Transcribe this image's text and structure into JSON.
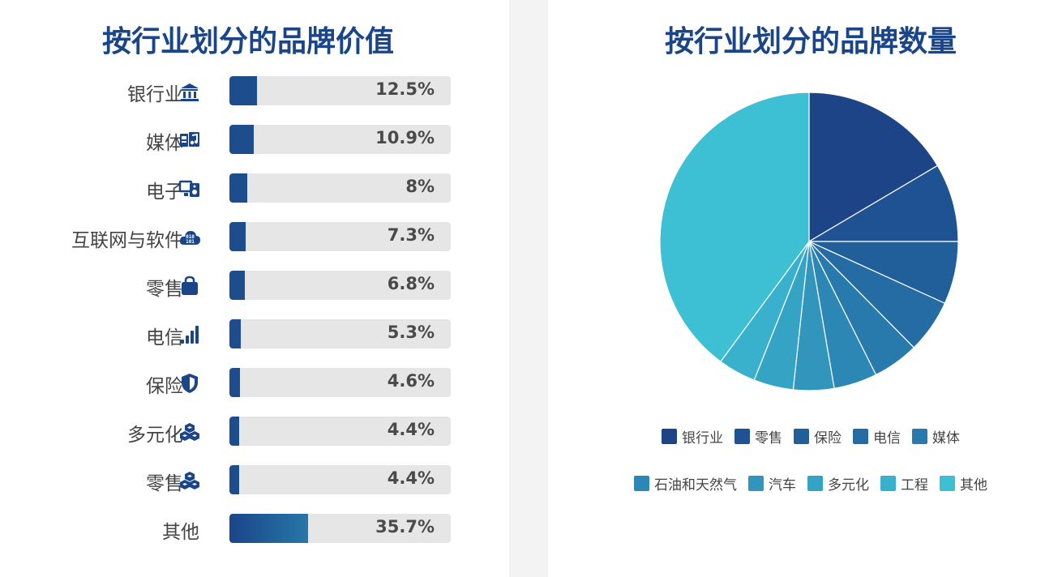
{
  "chart_data": [
    {
      "type": "bar",
      "title": "按行业划分的品牌价值",
      "categories": [
        "银行业",
        "媒体",
        "电子",
        "互联网与软件",
        "零售",
        "电信",
        "保险",
        "多元化",
        "零售",
        "其他"
      ],
      "values": [
        12.5,
        10.9,
        8,
        7.3,
        6.8,
        5.3,
        4.6,
        4.4,
        4.4,
        35.7
      ],
      "value_labels": [
        "12.5%",
        "10.9%",
        "8%",
        "7.3%",
        "6.8%",
        "5.3%",
        "4.6%",
        "4.4%",
        "4.4%",
        "35.7%"
      ],
      "icons": [
        "bank-icon",
        "media-icon",
        "electronics-icon",
        "cloud-binary-icon",
        "shopping-bag-icon",
        "signal-icon",
        "shield-icon",
        "cubes-icon",
        "cubes-icon",
        ""
      ],
      "unit": "%",
      "xlim": [
        0,
        100
      ]
    },
    {
      "type": "pie",
      "title": "按行业划分的品牌数量",
      "categories": [
        "银行业",
        "零售",
        "保险",
        "电信",
        "媒体",
        "石油和天然气",
        "汽车",
        "多元化",
        "工程",
        "其他"
      ],
      "values": [
        16.5,
        8.5,
        6.8,
        5.8,
        5.0,
        4.7,
        4.4,
        4.3,
        4.1,
        39.9
      ],
      "colors": [
        "#1c4487",
        "#1f5293",
        "#215f9b",
        "#256ca4",
        "#2879ac",
        "#2d87b4",
        "#3195bc",
        "#35a3c4",
        "#39b1cc",
        "#3dbfd4"
      ],
      "legend_position": "bottom"
    }
  ],
  "colors": {
    "title": "#1b4589",
    "bar_fill": "#1e4d8e",
    "track": "#e6e6e6",
    "divider": "#f3f3f3"
  }
}
